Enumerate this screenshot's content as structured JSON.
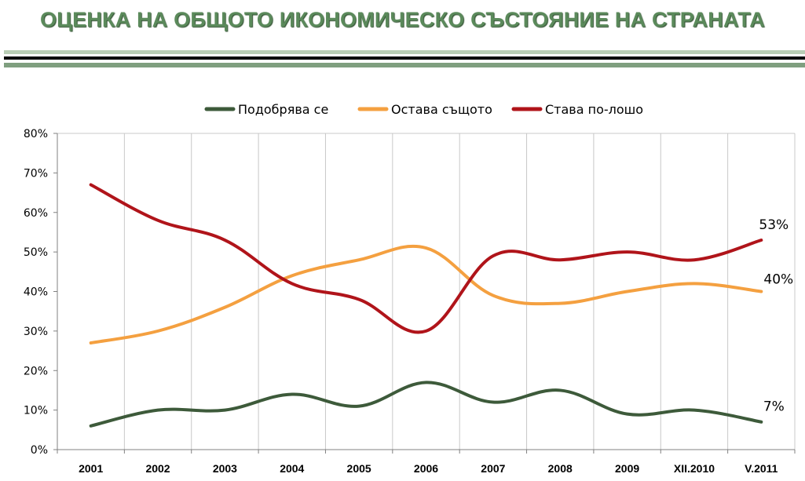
{
  "header": {
    "title": "ОЦЕНКА НА ОБЩОТО ИКОНОМИЧЕСКО СЪСТОЯНИЕ НА СТРАНАТА"
  },
  "chart_data": {
    "type": "line",
    "title": "ОЦЕНКА НА ОБЩОТО ИКОНОМИЧЕСКО СЪСТОЯНИЕ НА СТРАНАТА",
    "categories": [
      "2001",
      "2002",
      "2003",
      "2004",
      "2005",
      "2006",
      "2007",
      "2008",
      "2009",
      "XII.2010",
      "V.2011"
    ],
    "ylim": [
      0,
      80
    ],
    "yticks": [
      "0%",
      "10%",
      "20%",
      "30%",
      "40%",
      "50%",
      "60%",
      "70%",
      "80%"
    ],
    "grid": "vertical",
    "legend": "top-center",
    "series": [
      {
        "name": "Подобрява се",
        "color": "#3d5a3a",
        "values": [
          6,
          10,
          10,
          14,
          11,
          17,
          12,
          15,
          9,
          10,
          7
        ],
        "end_label": "7%"
      },
      {
        "name": "Остава същото",
        "color": "#f4a040",
        "values": [
          27,
          30,
          36,
          44,
          48,
          51,
          39,
          37,
          40,
          42,
          40
        ],
        "end_label": "40%"
      },
      {
        "name": "Става по-лошо",
        "color": "#b0141a",
        "values": [
          67,
          58,
          53,
          42,
          38,
          30,
          49,
          48,
          50,
          48,
          53
        ],
        "end_label": "53%"
      }
    ]
  }
}
